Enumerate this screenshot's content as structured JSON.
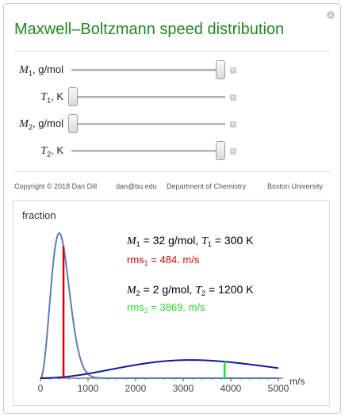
{
  "title": "Maxwell–Boltzmann speed distribution",
  "controls": [
    {
      "var": "M",
      "sub": "1",
      "unit": ", g/mol",
      "value": 1.0
    },
    {
      "var": "T",
      "sub": "1",
      "unit": ", K",
      "value": 0.0
    },
    {
      "var": "M",
      "sub": "2",
      "unit": ", g/mol",
      "value": 0.0
    },
    {
      "var": "T",
      "sub": "2",
      "unit": ", K",
      "value": 1.0
    }
  ],
  "footer": {
    "copyright": "Copyright © 2018 Dan Dill",
    "email": "dan@bu.edu",
    "department": "Department of Chemistry",
    "university": "Boston University"
  },
  "chart_data": {
    "type": "line",
    "ylabel": "fraction",
    "xlabel": "m/s",
    "xlim": [
      0,
      5000
    ],
    "x_ticks": [
      0,
      1000,
      2000,
      3000,
      4000,
      5000
    ],
    "series": [
      {
        "name": "",
        "color": "#5b7fb8",
        "M_g_per_mol": 32,
        "T_K": 300,
        "rms": 484
      },
      {
        "name": "",
        "color": "#1515a8",
        "M_g_per_mol": 2,
        "T_K": 1200,
        "rms": 3869
      }
    ],
    "rms_markers": [
      {
        "x": 484,
        "color": "#dd0000"
      },
      {
        "x": 3869,
        "color": "#22dd22"
      }
    ],
    "annotations": {
      "line1": {
        "M": "M",
        "Msub": "1",
        "Mval": " = 32 g/mol, ",
        "T": "T",
        "Tsub": "1",
        "Tval": " = 300 K"
      },
      "rms1": {
        "pre": "rms",
        "sub": "1",
        "val": " = 484. m/s",
        "color": "#dd0000"
      },
      "line2": {
        "M": "M",
        "Msub": "2",
        "Mval": " = 2 g/mol, ",
        "T": "T",
        "Tsub": "2",
        "Tval": " = 1200 K"
      },
      "rms2": {
        "pre": "rms",
        "sub": "2",
        "val": " = 3869. m/s",
        "color": "#22dd22"
      }
    }
  }
}
